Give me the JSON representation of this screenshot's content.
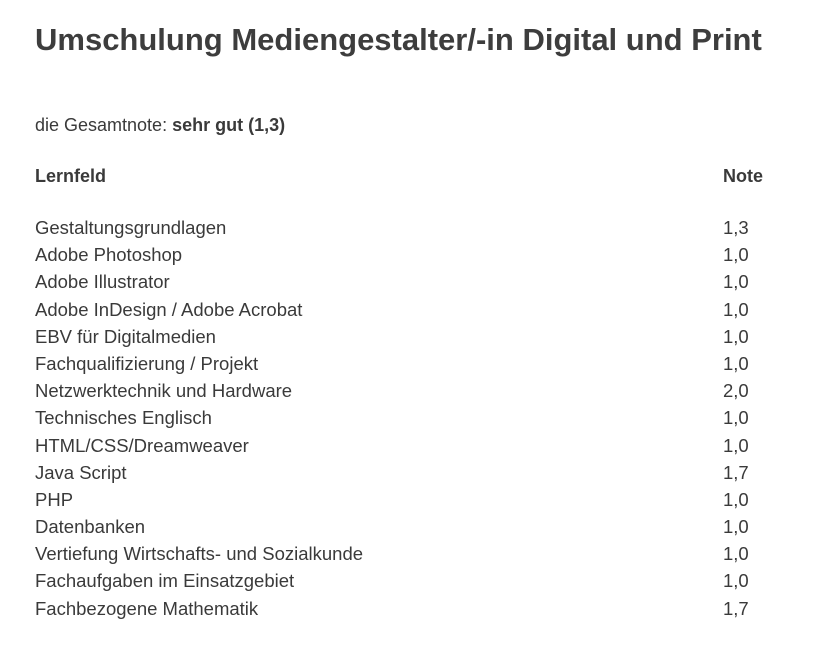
{
  "page": {
    "title": "Umschulung Mediengestalter/-in Digital und Print"
  },
  "overall": {
    "label": "die Gesamtnote:",
    "value": "sehr gut (1,3)"
  },
  "table": {
    "headers": {
      "subject": "Lernfeld",
      "grade": "Note"
    },
    "rows": [
      {
        "subject": "Gestaltungsgrundlagen",
        "grade": "1,3"
      },
      {
        "subject": "Adobe Photoshop",
        "grade": "1,0"
      },
      {
        "subject": "Adobe Illustrator",
        "grade": "1,0"
      },
      {
        "subject": "Adobe InDesign / Adobe Acrobat",
        "grade": "1,0"
      },
      {
        "subject": "EBV für Digitalmedien",
        "grade": "1,0"
      },
      {
        "subject": "Fachqualifizierung / Projekt",
        "grade": "1,0"
      },
      {
        "subject": "Netzwerktechnik und Hardware",
        "grade": "2,0"
      },
      {
        "subject": "Technisches Englisch",
        "grade": "1,0"
      },
      {
        "subject": "HTML/CSS/Dreamweaver",
        "grade": "1,0"
      },
      {
        "subject": "Java Script",
        "grade": "1,7"
      },
      {
        "subject": "PHP",
        "grade": "1,0"
      },
      {
        "subject": "Datenbanken",
        "grade": "1,0"
      },
      {
        "subject": "Vertiefung Wirtschafts- und Sozialkunde",
        "grade": "1,0"
      },
      {
        "subject": "Fachaufgaben im Einsatzgebiet",
        "grade": "1,0"
      },
      {
        "subject": "Fachbezogene Mathematik",
        "grade": "1,7"
      }
    ]
  }
}
